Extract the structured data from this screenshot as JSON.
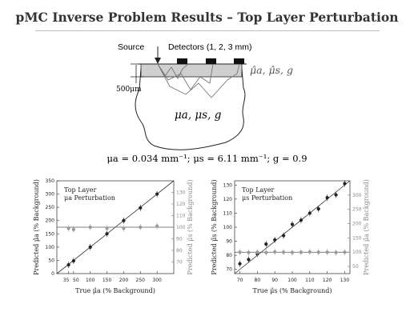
{
  "title": "pMC Inverse Problem Results – Top Layer Perturbation",
  "diagram": {
    "source_label": "Source",
    "detectors_label": "Detectors (1, 2, 3 mm)",
    "depth_label": "500μm",
    "top_layer_params": "μ̂a, μ̂s, g",
    "bulk_params": "μa, μs, g"
  },
  "baseline_params": "μa = 0.034 mm⁻¹; μs = 6.11 mm⁻¹; g = 0.9",
  "chart_data": [
    {
      "type": "scatter",
      "annotation_line1": "Top Layer",
      "annotation_line2": "μa Perturbation",
      "xlabel": "True μ̂a (% Background)",
      "ylabel": "Predicted μ̂a (% Background)",
      "ylabel_right": "Predicted μ̂s (% Background)",
      "xlim": [
        0,
        350
      ],
      "ylim": [
        0,
        350
      ],
      "ylim_right": [
        60,
        140
      ],
      "x_ticks": [
        "35",
        "50",
        "100",
        "150",
        "200",
        "250",
        "300"
      ],
      "y_ticks": [
        "0",
        "50",
        "100",
        "150",
        "200",
        "250",
        "300",
        "350"
      ],
      "y_ticks_right": [
        "70",
        "80",
        "90",
        "100",
        "110",
        "120",
        "130"
      ],
      "grid": false,
      "series": [
        {
          "axis": "left",
          "color": "#222222",
          "x": [
            35,
            50,
            100,
            150,
            200,
            250,
            300
          ],
          "y": [
            33,
            48,
            100,
            150,
            200,
            248,
            300
          ]
        },
        {
          "axis": "right",
          "color": "#999999",
          "x": [
            35,
            50,
            100,
            150,
            200,
            250,
            300
          ],
          "y": [
            99,
            98,
            100,
            99,
            99,
            100,
            101
          ]
        }
      ]
    },
    {
      "type": "scatter",
      "annotation_line1": "Top Layer",
      "annotation_line2": "μs Perturbation",
      "xlabel": "True μ̂s (% Background)",
      "ylabel": "Predicted μ̂s (% Background)",
      "ylabel_right": "Predicted μ̂a (% Background)",
      "xlim": [
        67,
        133
      ],
      "ylim": [
        67,
        133
      ],
      "ylim_right": [
        25,
        350
      ],
      "x_ticks": [
        "70",
        "80",
        "90",
        "100",
        "110",
        "120",
        "130"
      ],
      "y_ticks": [
        "70",
        "80",
        "90",
        "100",
        "110",
        "120",
        "130"
      ],
      "y_ticks_right": [
        "50",
        "100",
        "150",
        "200",
        "250",
        "300"
      ],
      "grid": false,
      "series": [
        {
          "axis": "left",
          "color": "#222222",
          "x": [
            70,
            75,
            80,
            85,
            90,
            95,
            100,
            105,
            110,
            115,
            120,
            125,
            130
          ],
          "y": [
            74,
            77,
            81,
            88,
            91,
            94,
            102,
            105,
            110,
            113,
            121,
            123,
            131
          ]
        },
        {
          "axis": "right",
          "color": "#999999",
          "x": [
            70,
            75,
            80,
            85,
            90,
            95,
            100,
            105,
            110,
            115,
            120,
            125,
            130
          ],
          "y": [
            100,
            99,
            100,
            99,
            101,
            100,
            99,
            100,
            101,
            100,
            100,
            99,
            100
          ]
        }
      ]
    }
  ]
}
